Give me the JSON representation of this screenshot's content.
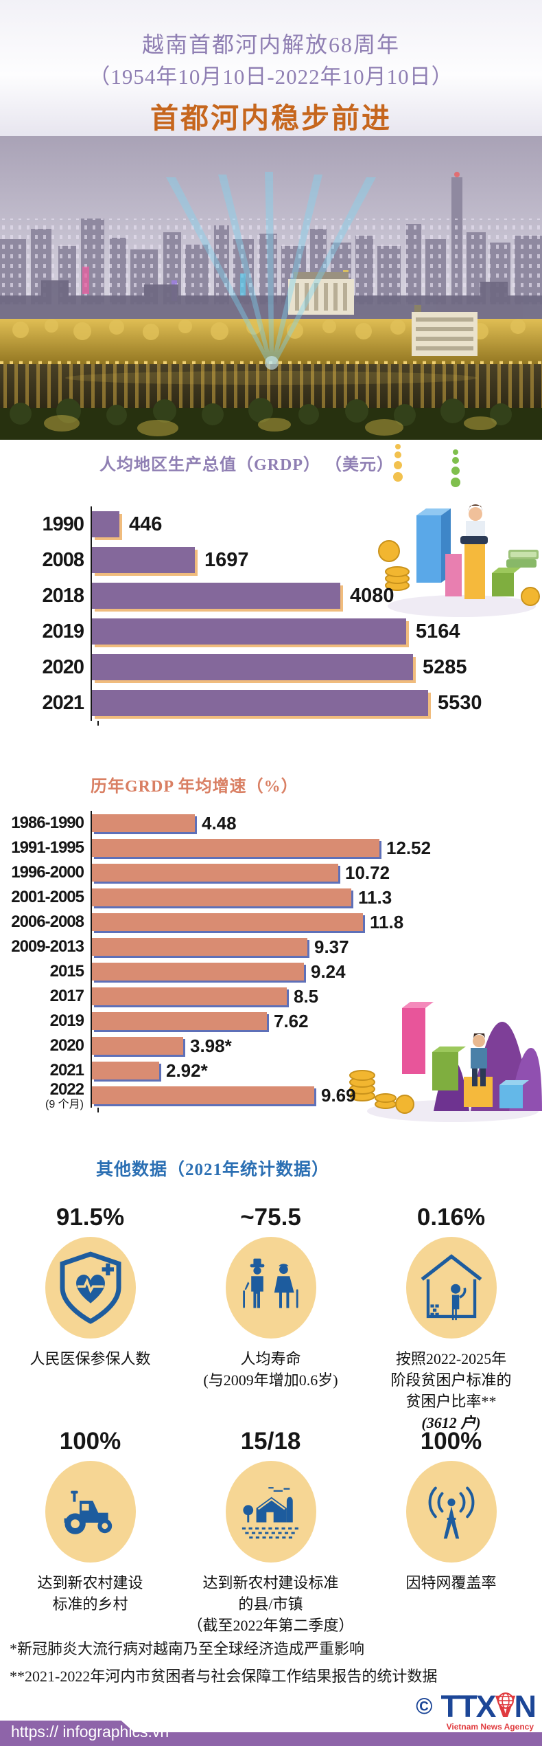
{
  "header": {
    "title_line1": "越南首都河内解放68周年",
    "title_line2": "（1954年10月10日-2022年10月10日）",
    "subtitle": "首都河内稳步前进"
  },
  "chart_data": [
    {
      "type": "bar",
      "orientation": "horizontal",
      "title": "人均地区生产总值（GRDP） （美元）",
      "categories": [
        "1990",
        "2008",
        "2018",
        "2019",
        "2020",
        "2021"
      ],
      "category_notes": [
        "",
        "",
        "",
        "",
        "",
        ""
      ],
      "values": [
        446,
        1697,
        4080,
        5164,
        5285,
        5530
      ],
      "value_labels": [
        "446",
        "1697",
        "4080",
        "5164",
        "5285",
        "5530"
      ],
      "xlim": [
        0,
        5530
      ],
      "grid": false,
      "legend": "none"
    },
    {
      "type": "bar",
      "orientation": "horizontal",
      "title": "历年GRDP 年均增速（%）",
      "categories": [
        "1986-1990",
        "1991-1995",
        "1996-2000",
        "2001-2005",
        "2006-2008",
        "2009-2013",
        "2015",
        "2017",
        "2019",
        "2020",
        "2021",
        "2022"
      ],
      "category_notes": [
        "",
        "",
        "",
        "",
        "",
        "",
        "",
        "",
        "",
        "",
        "",
        "(9 个月)"
      ],
      "values": [
        4.48,
        12.52,
        10.72,
        11.3,
        11.8,
        9.37,
        9.24,
        8.5,
        7.62,
        3.98,
        2.92,
        9.69
      ],
      "value_labels": [
        "4.48",
        "12.52",
        "10.72",
        "11.3",
        "11.8",
        "9.37",
        "9.24",
        "8.5",
        "7.62",
        "3.98*",
        "2.92*",
        "9.69"
      ],
      "xlim": [
        0,
        12.52
      ],
      "grid": false,
      "legend": "none"
    }
  ],
  "stats": {
    "title": "其他数据（2021年统计数据）",
    "items": [
      {
        "value": "91.5%",
        "icon": "health-insurance-icon",
        "lines": [
          "人民医保参保人数"
        ],
        "italic_note": ""
      },
      {
        "value": "~75.5",
        "icon": "elderly-couple-icon",
        "lines": [
          "人均寿命",
          "(与2009年增加0.6岁)"
        ],
        "italic_note": ""
      },
      {
        "value": "0.16%",
        "icon": "poor-household-icon",
        "lines": [
          "按照2022-2025年",
          "阶段贫困户标准的",
          "贫困户比率**"
        ],
        "italic_note": "(3612 户)"
      },
      {
        "value": "100%",
        "icon": "tractor-icon",
        "lines": [
          "达到新农村建设",
          "标准的乡村"
        ],
        "italic_note": ""
      },
      {
        "value": "15/18",
        "icon": "farm-village-icon",
        "lines": [
          "达到新农村建设标准",
          "的县/市镇",
          "（截至2022年第二季度）"
        ],
        "italic_note": ""
      },
      {
        "value": "100%",
        "icon": "internet-antenna-icon",
        "lines": [
          "因特网覆盖率"
        ],
        "italic_note": ""
      }
    ]
  },
  "footnotes": [
    "*新冠肺炎大流行病对越南乃至全球经济造成严重影响",
    "**2021-2022年河内市贫困者与社会保障工作结果报告的统计数据"
  ],
  "footer": {
    "url": "https:// infographics.vn",
    "copyright_symbol": "©",
    "logo_text": "TTXVN",
    "logo_subtitle": "Vietnam News Agency"
  },
  "colors": {
    "header_purple": "#8F7FB3",
    "accent_orange": "#C6661D",
    "grdp_bar": "#84689B",
    "grdp_shadow": "#F0BC7D",
    "growth_bar": "#D98C72",
    "growth_shadow": "#5E70B8",
    "growth_title": "#D97F63",
    "stats_title_blue": "#2B6FB3",
    "icon_blue": "#1D5C9E",
    "circle_bg": "#F6D694",
    "footer_purple": "#8E64A9",
    "ttxvn_blue": "#1C4697",
    "ttxvn_red": "#E03A3E"
  }
}
